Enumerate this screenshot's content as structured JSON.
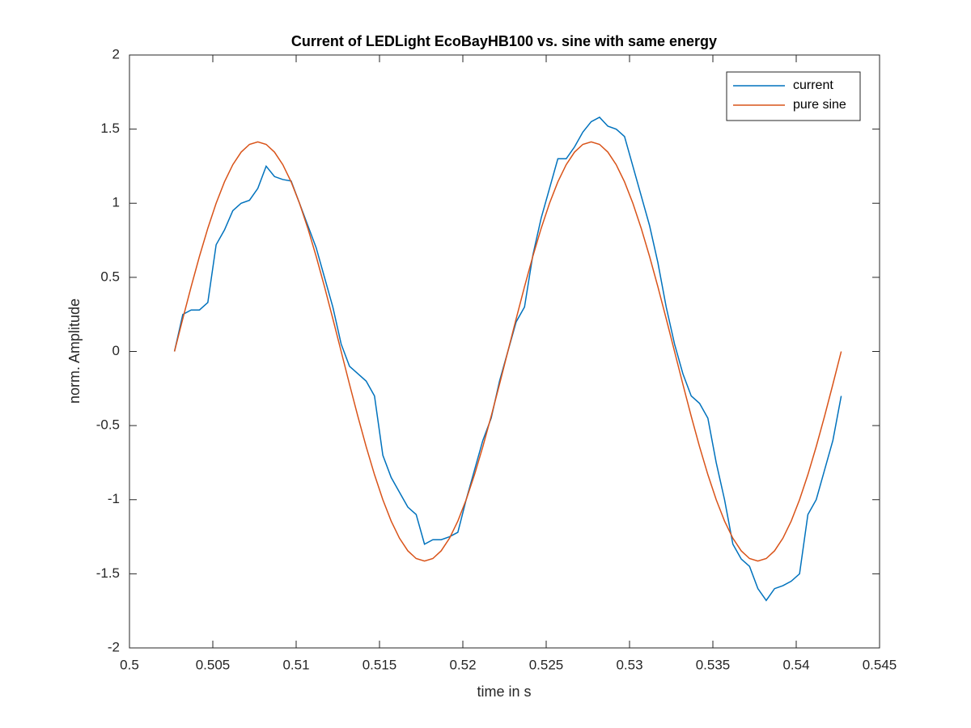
{
  "chart_data": {
    "type": "line",
    "title": "Current of LEDLight EcoBayHB100 vs. sine with same energy",
    "x_label": "time in s",
    "y_label": "norm. Amplitude",
    "x": [
      0.5027,
      0.5032,
      0.5037,
      0.5042,
      0.5047,
      0.5052,
      0.5057,
      0.5062,
      0.5067,
      0.5072,
      0.5077,
      0.5082,
      0.5087,
      0.5092,
      0.5097,
      0.5102,
      0.5107,
      0.5112,
      0.5117,
      0.5122,
      0.5127,
      0.5132,
      0.5137,
      0.5142,
      0.5147,
      0.5152,
      0.5157,
      0.5162,
      0.5167,
      0.5172,
      0.5177,
      0.5182,
      0.5187,
      0.5192,
      0.5197,
      0.5202,
      0.5207,
      0.5212,
      0.5217,
      0.5222,
      0.5227,
      0.5232,
      0.5237,
      0.5242,
      0.5247,
      0.5252,
      0.5257,
      0.5262,
      0.5267,
      0.5272,
      0.5277,
      0.5282,
      0.5287,
      0.5292,
      0.5297,
      0.5302,
      0.5307,
      0.5312,
      0.5317,
      0.5322,
      0.5327,
      0.5332,
      0.5337,
      0.5342,
      0.5347,
      0.5352,
      0.5357,
      0.5362,
      0.5367,
      0.5372,
      0.5377,
      0.5382,
      0.5387,
      0.5392,
      0.5397,
      0.5402,
      0.5407,
      0.5412,
      0.5417,
      0.5422,
      0.5427
    ],
    "series": [
      {
        "name": "current",
        "color": "#0072bd",
        "values": [
          0,
          0.25,
          0.28,
          0.28,
          0.33,
          0.72,
          0.82,
          0.95,
          1.0,
          1.02,
          1.1,
          1.25,
          1.18,
          1.16,
          1.15,
          1.0,
          0.85,
          0.7,
          0.5,
          0.3,
          0.05,
          -0.1,
          -0.15,
          -0.2,
          -0.3,
          -0.7,
          -0.85,
          -0.95,
          -1.05,
          -1.1,
          -1.3,
          -1.27,
          -1.27,
          -1.25,
          -1.22,
          -1.0,
          -0.8,
          -0.6,
          -0.45,
          -0.2,
          0.0,
          0.2,
          0.3,
          0.65,
          0.9,
          1.1,
          1.3,
          1.3,
          1.38,
          1.48,
          1.55,
          1.58,
          1.52,
          1.5,
          1.45,
          1.25,
          1.05,
          0.85,
          0.6,
          0.3,
          0.05,
          -0.15,
          -0.3,
          -0.35,
          -0.45,
          -0.75,
          -1.0,
          -1.3,
          -1.4,
          -1.45,
          -1.6,
          -1.68,
          -1.6,
          -1.58,
          -1.55,
          -1.5,
          -1.1,
          -1.0,
          -0.8,
          -0.6,
          -0.3
        ]
      },
      {
        "name": "pure sine",
        "color": "#d95319",
        "values": [
          0,
          0.221,
          0.437,
          0.642,
          0.831,
          1.0,
          1.144,
          1.26,
          1.345,
          1.397,
          1.414,
          1.397,
          1.345,
          1.26,
          1.144,
          1.0,
          0.831,
          0.642,
          0.437,
          0.221,
          0,
          -0.221,
          -0.437,
          -0.642,
          -0.831,
          -1.0,
          -1.144,
          -1.26,
          -1.345,
          -1.397,
          -1.414,
          -1.397,
          -1.345,
          -1.26,
          -1.144,
          -1.0,
          -0.831,
          -0.642,
          -0.437,
          -0.221,
          0,
          0.221,
          0.437,
          0.642,
          0.831,
          1.0,
          1.144,
          1.26,
          1.345,
          1.397,
          1.414,
          1.397,
          1.345,
          1.26,
          1.144,
          1.0,
          0.831,
          0.642,
          0.437,
          0.221,
          0,
          -0.221,
          -0.437,
          -0.642,
          -0.831,
          -1.0,
          -1.144,
          -1.26,
          -1.345,
          -1.397,
          -1.414,
          -1.397,
          -1.345,
          -1.26,
          -1.144,
          -1.0,
          -0.831,
          -0.642,
          -0.437,
          -0.221,
          0
        ]
      }
    ],
    "xlim": [
      0.5,
      0.545
    ],
    "xticks": [
      0.5,
      0.505,
      0.51,
      0.515,
      0.52,
      0.525,
      0.53,
      0.535,
      0.54,
      0.545
    ],
    "ylim": [
      -2,
      2
    ],
    "yticks": [
      -2,
      -1.5,
      -1,
      -0.5,
      0,
      0.5,
      1,
      1.5,
      2
    ],
    "grid": false,
    "legend": "northeast"
  }
}
